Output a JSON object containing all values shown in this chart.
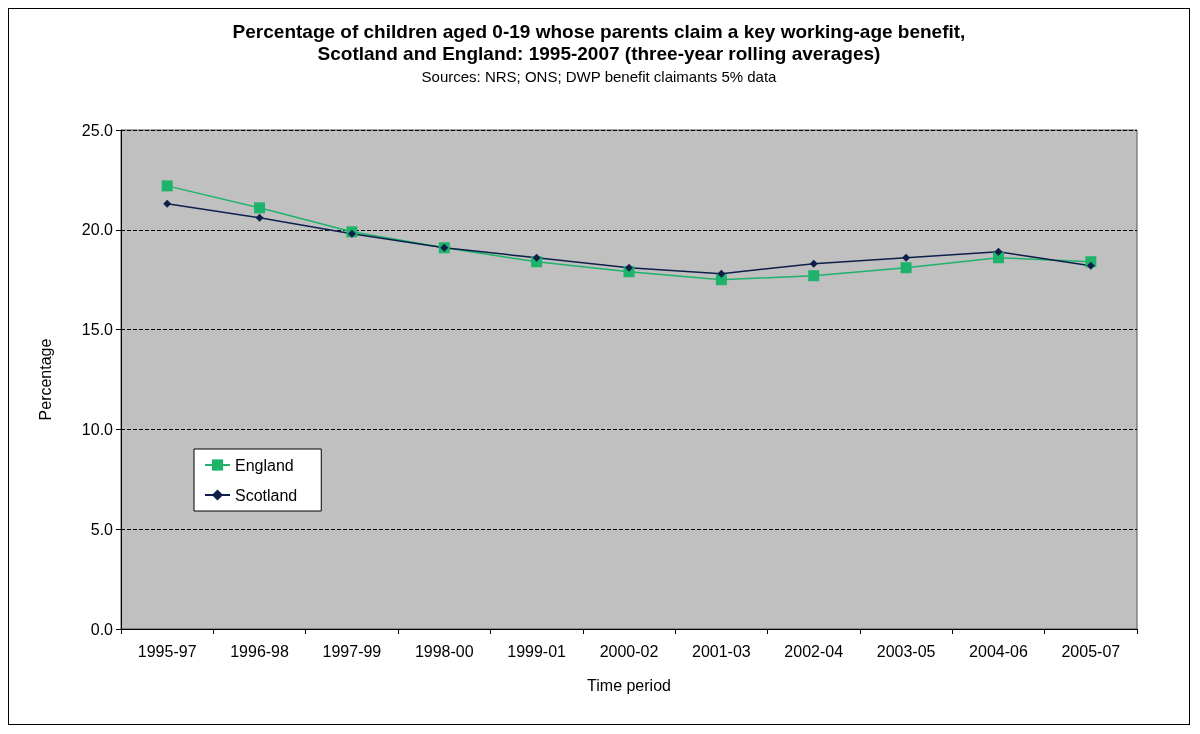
{
  "chart_data": {
    "type": "line",
    "title": "Percentage of children aged 0-19 whose parents claim a key working-age benefit,\nScotland and England: 1995-2007 (three-year rolling averages)",
    "subtitle": "Sources: NRS; ONS; DWP benefit claimants 5% data",
    "xlabel": "Time period",
    "ylabel": "Percentage",
    "categories": [
      "1995-97",
      "1996-98",
      "1997-99",
      "1998-00",
      "1999-01",
      "2000-02",
      "2001-03",
      "2002-04",
      "2003-05",
      "2004-06",
      "2005-07"
    ],
    "series": [
      {
        "name": "England",
        "color": "#1db36b",
        "marker": "square",
        "values": [
          22.2,
          21.1,
          19.9,
          19.1,
          18.4,
          17.9,
          17.5,
          17.7,
          18.1,
          18.6,
          18.4
        ]
      },
      {
        "name": "Scotland",
        "color": "#0d1f4a",
        "marker": "diamond",
        "values": [
          21.3,
          20.6,
          19.8,
          19.1,
          18.6,
          18.1,
          17.8,
          18.3,
          18.6,
          18.9,
          18.2
        ]
      }
    ],
    "ylim": [
      0,
      25
    ],
    "yticks": [
      {
        "value": 0,
        "label": "0.0"
      },
      {
        "value": 5,
        "label": "5.0"
      },
      {
        "value": 10,
        "label": "10.0"
      },
      {
        "value": 15,
        "label": "15.0"
      },
      {
        "value": 20,
        "label": "20.0"
      },
      {
        "value": 25,
        "label": "25.0"
      }
    ],
    "grid": "y",
    "legend": "left",
    "line_style": "solid"
  }
}
